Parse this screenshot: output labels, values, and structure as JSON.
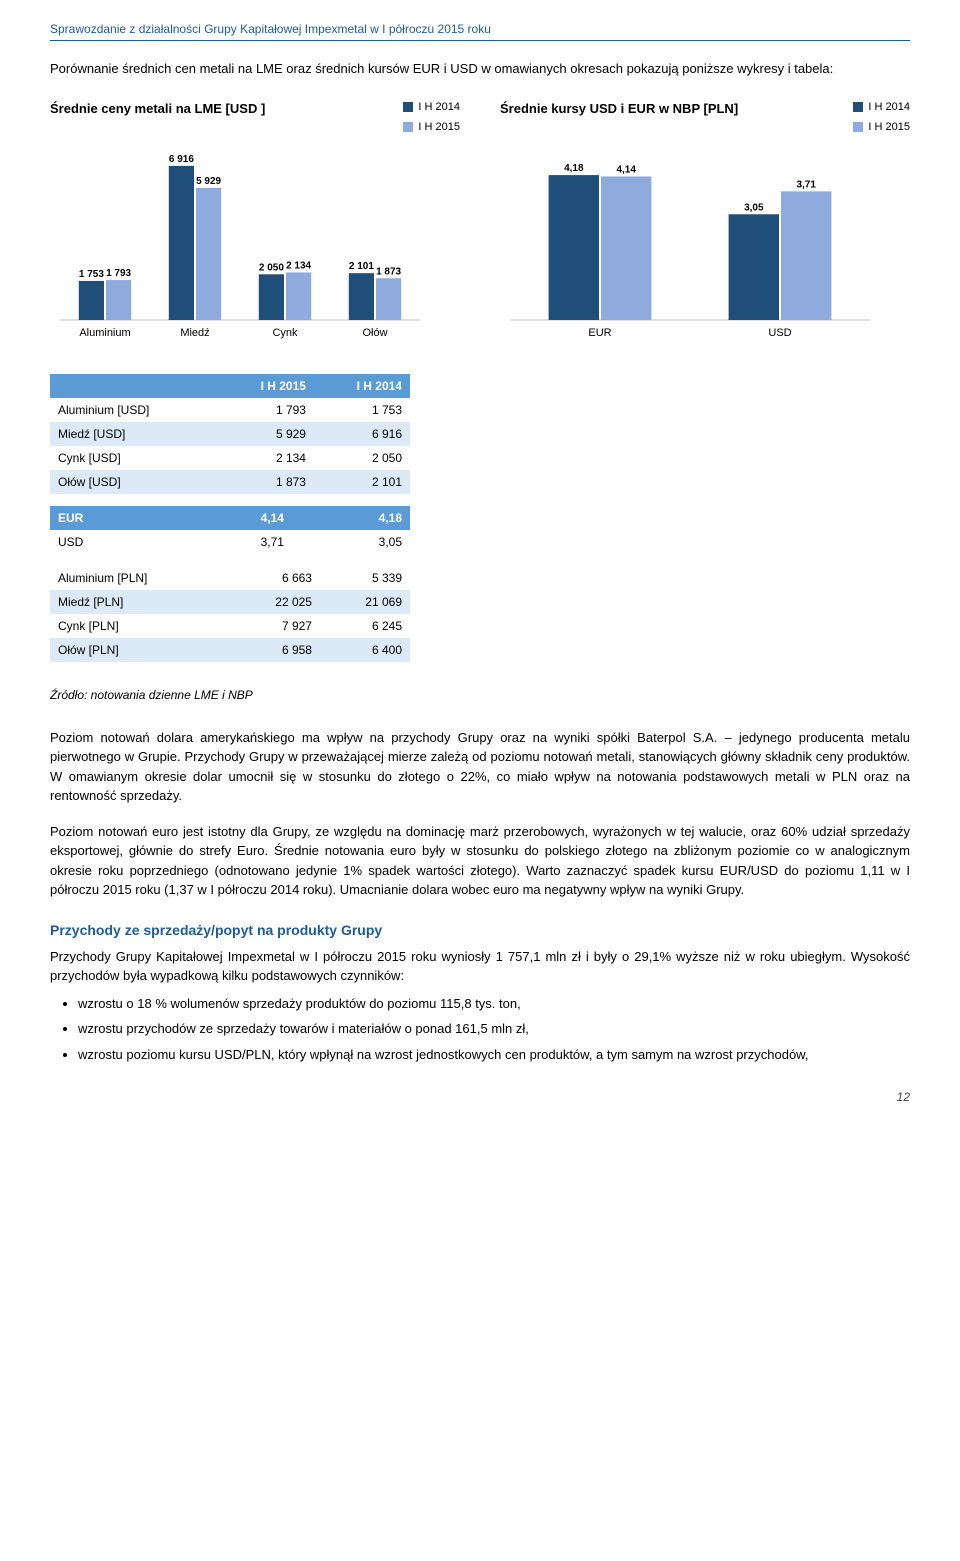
{
  "header": "Sprawozdanie z działalności Grupy Kapitałowej Impexmetal w I półroczu 2015 roku",
  "intro": "Porównanie średnich cen metali na LME oraz średnich kursów EUR i USD w omawianych okresach pokazują poniższe wykresy i tabela:",
  "chart_lme": {
    "title": "Średnie ceny metali na LME [USD ]",
    "legend": [
      {
        "label": "I H 2014",
        "color": "#1f4e79"
      },
      {
        "label": "I H 2015",
        "color": "#8faadc"
      }
    ],
    "categories": [
      "Aluminium",
      "Miedź",
      "Cynk",
      "Ołów"
    ],
    "series": [
      {
        "values": [
          1753,
          6916,
          2050,
          2101
        ],
        "color": "#1f4e79"
      },
      {
        "values": [
          1793,
          5929,
          2134,
          1873
        ],
        "color": "#8faadc"
      }
    ],
    "value_labels": [
      [
        "1 753",
        "6 916",
        "2 050",
        "2 101"
      ],
      [
        "1 793",
        "5 929",
        "2 134",
        "1 873"
      ]
    ],
    "ymax": 7000,
    "label_fontsize": 10
  },
  "chart_fx": {
    "title": "Średnie kursy USD i EUR w NBP [PLN]",
    "legend": [
      {
        "label": "I H 2014",
        "color": "#1f4e79"
      },
      {
        "label": "I H 2015",
        "color": "#8faadc"
      }
    ],
    "categories": [
      "EUR",
      "USD"
    ],
    "series": [
      {
        "values": [
          4.18,
          3.05
        ],
        "color": "#1f4e79"
      },
      {
        "values": [
          4.14,
          3.71
        ],
        "color": "#8faadc"
      }
    ],
    "value_labels": [
      [
        "4,18",
        "3,05"
      ],
      [
        "4,14",
        "3,71"
      ]
    ],
    "ymax": 4.5,
    "label_fontsize": 10
  },
  "table_usd": {
    "headers": [
      "",
      "I H 2015",
      "I H 2014"
    ],
    "rows": [
      [
        "Aluminium [USD]",
        "1 793",
        "1 753"
      ],
      [
        "Miedź [USD]",
        "5 929",
        "6 916"
      ],
      [
        "Cynk [USD]",
        "2 134",
        "2 050"
      ],
      [
        "Ołów [USD]",
        "1 873",
        "2 101"
      ]
    ]
  },
  "table_rates": {
    "rows": [
      [
        "EUR",
        "4,14",
        "4,18"
      ],
      [
        "USD",
        "3,71",
        "3,05"
      ]
    ]
  },
  "table_pln": {
    "rows": [
      [
        "Aluminium [PLN]",
        "6 663",
        "5 339"
      ],
      [
        "Miedź [PLN]",
        "22 025",
        "21 069"
      ],
      [
        "Cynk [PLN]",
        "7 927",
        "6 245"
      ],
      [
        "Ołów [PLN]",
        "6 958",
        "6 400"
      ]
    ]
  },
  "source": "Źródło: notowania dzienne LME i NBP",
  "para1": "Poziom notowań dolara amerykańskiego ma wpływ na przychody Grupy oraz na wyniki spółki Baterpol S.A. – jedynego producenta metalu pierwotnego w Grupie. Przychody Grupy w przeważającej mierze zależą od poziomu notowań metali, stanowiących główny składnik ceny produktów. W omawianym okresie dolar umocnił się w stosunku do złotego o 22%, co miało wpływ na notowania podstawowych metali w PLN oraz na rentowność sprzedaży.",
  "para2": "Poziom notowań euro jest istotny dla Grupy, ze względu na dominację marż przerobowych, wyrażonych w tej walucie, oraz 60% udział sprzedaży eksportowej, głównie do strefy Euro. Średnie notowania euro były w stosunku do polskiego złotego na zbliżonym poziomie co w analogicznym okresie roku poprzedniego (odnotowano jedynie 1% spadek wartości złotego). Warto zaznaczyć spadek kursu EUR/USD do poziomu 1,11 w I półroczu 2015 roku (1,37 w I półroczu 2014 roku). Umacnianie dolara wobec euro ma negatywny wpływ na wyniki Grupy.",
  "section_heading": "Przychody ze sprzedaży/popyt na produkty Grupy",
  "para3": "Przychody Grupy Kapitałowej Impexmetal w I półroczu 2015 roku wyniosły 1 757,1 mln zł i były o 29,1% wyższe niż w roku ubiegłym. Wysokość przychodów była wypadkową kilku podstawowych czynników:",
  "bullets": [
    "wzrostu o 18 % wolumenów sprzedaży produktów do poziomu 115,8 tys. ton,",
    "wzrostu przychodów ze sprzedaży towarów i materiałów o ponad 161,5 mln zł,",
    "wzrostu poziomu kursu USD/PLN, który wpłynął na wzrost jednostkowych cen produktów, a tym samym na wzrost przychodów,"
  ],
  "page_num": "12"
}
